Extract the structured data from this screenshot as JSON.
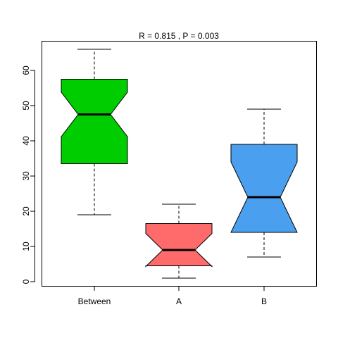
{
  "chart_data": {
    "type": "boxplot",
    "title": "R =  0.815 ,  P =  0.003",
    "xlabel": "",
    "ylabel": "",
    "ylim": [
      -1.3,
      68.3
    ],
    "yticks": [
      0,
      10,
      20,
      30,
      40,
      50,
      60
    ],
    "notched": true,
    "grid": false,
    "legend": "none",
    "categories": [
      "Between",
      "A",
      "B"
    ],
    "boxes": [
      {
        "name": "Between",
        "color": "#00CD00",
        "whisker_low": 19,
        "q1": 33.5,
        "median": 47.5,
        "q3": 57.5,
        "whisker_high": 66,
        "notch_low": 41.2,
        "notch_high": 53.8
      },
      {
        "name": "A",
        "color": "#FF6A6A",
        "whisker_low": 1,
        "q1": 4.5,
        "median": 9,
        "q3": 16.5,
        "whisker_high": 22,
        "notch_low": 4.3,
        "notch_high": 13.7
      },
      {
        "name": "B",
        "color": "#4A9FEE",
        "whisker_low": 7,
        "q1": 14,
        "median": 24,
        "q3": 39,
        "whisker_high": 49,
        "notch_low": 14,
        "notch_high": 34
      }
    ]
  }
}
